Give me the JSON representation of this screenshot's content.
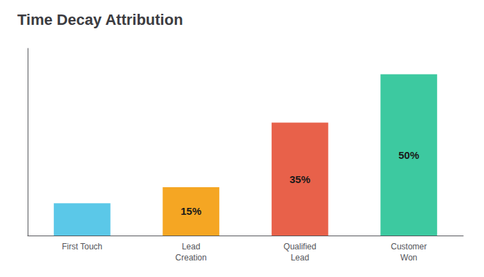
{
  "chart_data": {
    "type": "bar",
    "title": "Time Decay Attribution",
    "categories": [
      "First Touch",
      "Lead\nCreation",
      "Qualified\nLead",
      "Customer\nWon"
    ],
    "values": [
      10,
      15,
      35,
      50
    ],
    "colors": [
      "#5BC8E8",
      "#F5A623",
      "#E8614A",
      "#3DC9A0"
    ],
    "data_labels": true,
    "value_labels": [
      null,
      "15%",
      "35%",
      "50%"
    ],
    "ylim": [
      0,
      58
    ],
    "grid": false,
    "tick_labels": "x"
  }
}
